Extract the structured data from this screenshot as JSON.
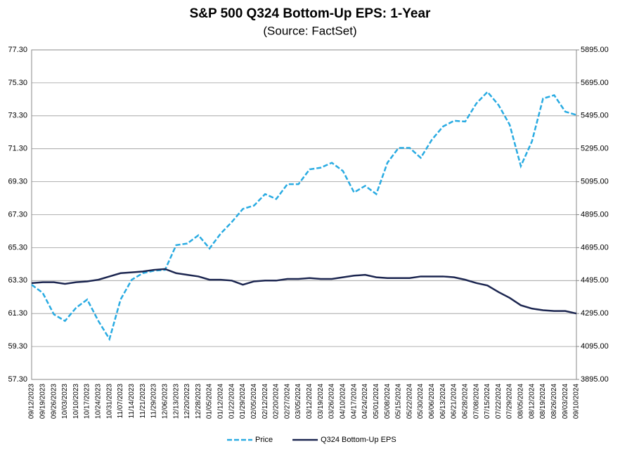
{
  "chart_data": {
    "type": "line",
    "title": "S&P 500 Q324 Bottom-Up EPS: 1-Year",
    "subtitle": "(Source: FactSet)",
    "categories": [
      "09/12/2023",
      "09/19/2023",
      "09/26/2023",
      "10/03/2023",
      "10/10/2023",
      "10/17/2023",
      "10/24/2023",
      "10/31/2023",
      "11/07/2023",
      "11/14/2023",
      "11/21/2023",
      "11/29/2023",
      "12/06/2023",
      "12/13/2023",
      "12/20/2023",
      "12/28/2023",
      "01/05/2024",
      "01/12/2024",
      "01/22/2024",
      "01/29/2024",
      "02/05/2024",
      "02/12/2024",
      "02/20/2024",
      "02/27/2024",
      "03/05/2024",
      "03/12/2024",
      "03/19/2024",
      "03/26/2024",
      "04/10/2024",
      "04/17/2024",
      "04/24/2024",
      "05/01/2024",
      "05/08/2024",
      "05/15/2024",
      "05/22/2024",
      "05/30/2024",
      "06/06/2024",
      "06/13/2024",
      "06/21/2024",
      "06/28/2024",
      "07/08/2024",
      "07/15/2024",
      "07/22/2024",
      "07/29/2024",
      "08/05/2024",
      "08/12/2024",
      "08/19/2024",
      "08/26/2024",
      "09/03/2024",
      "09/10/2024"
    ],
    "series": [
      {
        "name": "Price",
        "color": "#29abe2",
        "line_style": "dashed",
        "axis": "y2",
        "values": [
          4470,
          4420,
          4290,
          4250,
          4330,
          4380,
          4250,
          4140,
          4380,
          4500,
          4540,
          4555,
          4560,
          4710,
          4720,
          4770,
          4690,
          4780,
          4850,
          4930,
          4950,
          5020,
          4990,
          5080,
          5080,
          5170,
          5180,
          5210,
          5160,
          5030,
          5070,
          5020,
          5210,
          5300,
          5300,
          5240,
          5350,
          5430,
          5465,
          5460,
          5570,
          5640,
          5560,
          5440,
          5190,
          5340,
          5600,
          5620,
          5520,
          5500
        ]
      },
      {
        "name": "Q324 Bottom-Up EPS",
        "color": "#1c2650",
        "line_style": "solid",
        "values": [
          63.15,
          63.2,
          63.2,
          63.1,
          63.2,
          63.25,
          63.35,
          63.55,
          63.75,
          63.8,
          63.85,
          63.95,
          64.0,
          63.75,
          63.65,
          63.55,
          63.35,
          63.35,
          63.3,
          63.05,
          63.25,
          63.3,
          63.3,
          63.4,
          63.4,
          63.45,
          63.4,
          63.4,
          63.5,
          63.6,
          63.65,
          63.5,
          63.45,
          63.45,
          63.45,
          63.55,
          63.55,
          63.55,
          63.5,
          63.35,
          63.15,
          63.0,
          62.6,
          62.25,
          61.8,
          61.6,
          61.5,
          61.45,
          61.45,
          61.3
        ]
      }
    ],
    "ylim": [
      57.3,
      77.3
    ],
    "yticks": [
      {
        "value": 57.3,
        "label": "57.30"
      },
      {
        "value": 59.3,
        "label": "59.30"
      },
      {
        "value": 61.3,
        "label": "61.30"
      },
      {
        "value": 63.3,
        "label": "63.30"
      },
      {
        "value": 65.3,
        "label": "65.30"
      },
      {
        "value": 67.3,
        "label": "67.30"
      },
      {
        "value": 69.3,
        "label": "69.30"
      },
      {
        "value": 71.3,
        "label": "71.30"
      },
      {
        "value": 73.3,
        "label": "73.30"
      },
      {
        "value": 75.3,
        "label": "75.30"
      },
      {
        "value": 77.3,
        "label": "77.30"
      }
    ],
    "y2lim": [
      3895,
      5895
    ],
    "y2ticks": [
      {
        "value": 3895,
        "label": "3895.00"
      },
      {
        "value": 4095,
        "label": "4095.00"
      },
      {
        "value": 4295,
        "label": "4295.00"
      },
      {
        "value": 4495,
        "label": "4495.00"
      },
      {
        "value": 4695,
        "label": "4695.00"
      },
      {
        "value": 4895,
        "label": "4895.00"
      },
      {
        "value": 5095,
        "label": "5095.00"
      },
      {
        "value": 5295,
        "label": "5295.00"
      },
      {
        "value": 5495,
        "label": "5495.00"
      },
      {
        "value": 5695,
        "label": "5695.00"
      },
      {
        "value": 5895,
        "label": "5895.00"
      }
    ],
    "grid": true,
    "legend": "bottom"
  }
}
